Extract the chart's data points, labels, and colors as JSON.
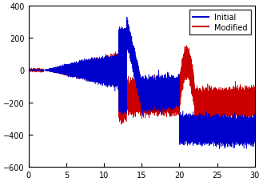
{
  "xlim": [
    0,
    30
  ],
  "ylim": [
    -600,
    400
  ],
  "xticks": [
    0,
    5,
    10,
    15,
    20,
    25,
    30
  ],
  "yticks": [
    -600,
    -400,
    -200,
    0,
    200,
    400
  ],
  "legend_labels": [
    "Initial",
    "Modified"
  ],
  "line_colors": [
    "#0000cc",
    "#cc0000"
  ],
  "figsize": [
    3.29,
    2.28
  ],
  "dpi": 100
}
